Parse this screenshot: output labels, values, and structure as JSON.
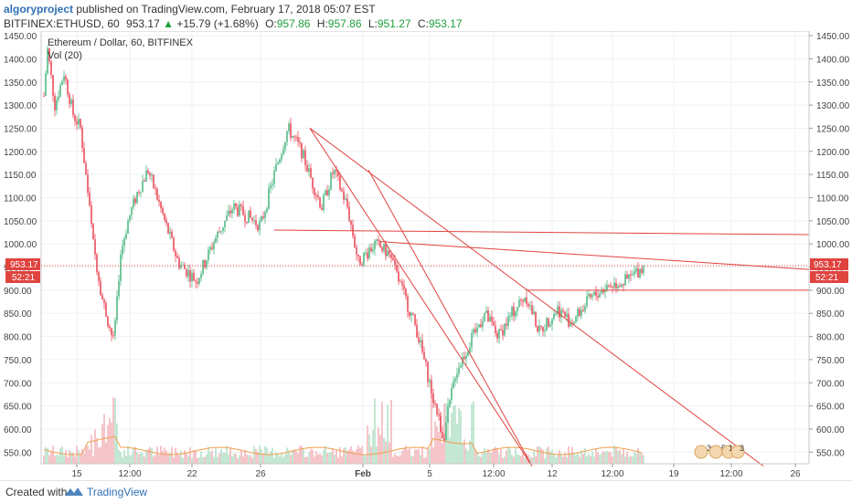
{
  "header": {
    "author": "algoryproject",
    "published": "published on TradingView.com, February 17, 2018 05:07 EST",
    "symbol": "BITFINEX:ETHUSD, 60",
    "last": "953.17",
    "change": "+15.79 (+1.68%)",
    "open_label": "O:",
    "open": "957.86",
    "high_label": "H:",
    "high": "957.86",
    "low_label": "L:",
    "low": "951.27",
    "close_label": "C:",
    "close": "953.17"
  },
  "legend": {
    "title": "Ethereum / Dollar, 60, BITFINEX",
    "volume": "Vol (20)"
  },
  "price_axis": {
    "labels": [
      "1450.00",
      "1400.00",
      "1350.00",
      "1300.00",
      "1250.00",
      "1200.00",
      "1150.00",
      "1100.00",
      "1050.00",
      "1000.00",
      "950.00",
      "900.00",
      "850.00",
      "800.00",
      "750.00",
      "700.00",
      "650.00",
      "600.00",
      "550.00"
    ],
    "current_price": "953.17",
    "countdown": "52:21"
  },
  "time_axis": {
    "labels": [
      "15",
      "12:00",
      "22",
      "26",
      "Feb",
      "5",
      "12:00",
      "12",
      "12:00",
      "19",
      "12:00",
      "26"
    ]
  },
  "events": [
    "3",
    "5",
    "1",
    "3"
  ],
  "footer": {
    "created_with": "Created with",
    "brand": "TradingView"
  },
  "colors": {
    "up": "#53b987",
    "down": "#eb4d5c",
    "trendline": "#e0443f",
    "price_tag": "#e0443f",
    "brand": "#2f6fb3"
  },
  "chart_data": {
    "type": "candlestick",
    "timeframe": "60",
    "y_range": [
      525,
      1460
    ],
    "guide_points": [
      [
        "15",
        1320
      ],
      [
        "15",
        1420
      ],
      [
        "15",
        1300
      ],
      [
        "15",
        1370
      ],
      [
        "15",
        1280
      ],
      [
        "15",
        1250
      ],
      [
        "15",
        1130
      ],
      [
        "15",
        1000
      ],
      [
        "15",
        880
      ],
      [
        "12:00",
        790
      ],
      [
        "12:00",
        980
      ],
      [
        "12:00",
        1050
      ],
      [
        "12:00",
        1110
      ],
      [
        "12:00",
        1160
      ],
      [
        "22",
        1100
      ],
      [
        "22",
        1050
      ],
      [
        "22",
        960
      ],
      [
        "22",
        920
      ],
      [
        "26",
        1010
      ],
      [
        "26",
        1080
      ],
      [
        "26",
        1060
      ],
      [
        "26",
        1040
      ],
      [
        "26",
        1150
      ],
      [
        "26",
        1250
      ],
      [
        "26",
        1200
      ],
      [
        "26",
        1130
      ],
      [
        "26",
        1080
      ],
      [
        "26",
        1160
      ],
      [
        "26",
        1080
      ],
      [
        "Feb",
        960
      ],
      [
        "Feb",
        1000
      ],
      [
        "Feb",
        980
      ],
      [
        "5",
        900
      ],
      [
        "5",
        820
      ],
      [
        "5",
        700
      ],
      [
        "5",
        580
      ],
      [
        "5",
        720
      ],
      [
        "12:00",
        790
      ],
      [
        "12:00",
        850
      ],
      [
        "12:00",
        800
      ],
      [
        "12:00",
        850
      ],
      [
        "12:00",
        890
      ],
      [
        "12",
        810
      ],
      [
        "12",
        860
      ],
      [
        "12",
        830
      ],
      [
        "12:00",
        880
      ],
      [
        "12:00",
        910
      ],
      [
        "12:00",
        920
      ],
      [
        "12:00",
        953
      ]
    ],
    "trendlines": [
      {
        "from": [
          "26",
          1250
        ],
        "to": [
          "12:00",
          520
        ]
      },
      {
        "from": [
          "26",
          1160
        ],
        "to": [
          "12:00",
          520
        ]
      },
      {
        "from": [
          "26",
          1030
        ],
        "to": [
          "26",
          1020
        ]
      },
      {
        "from": [
          "Feb",
          1005
        ],
        "to": [
          "26",
          945
        ]
      },
      {
        "from": [
          "12:00",
          900
        ],
        "to": [
          "26",
          900
        ]
      }
    ]
  }
}
